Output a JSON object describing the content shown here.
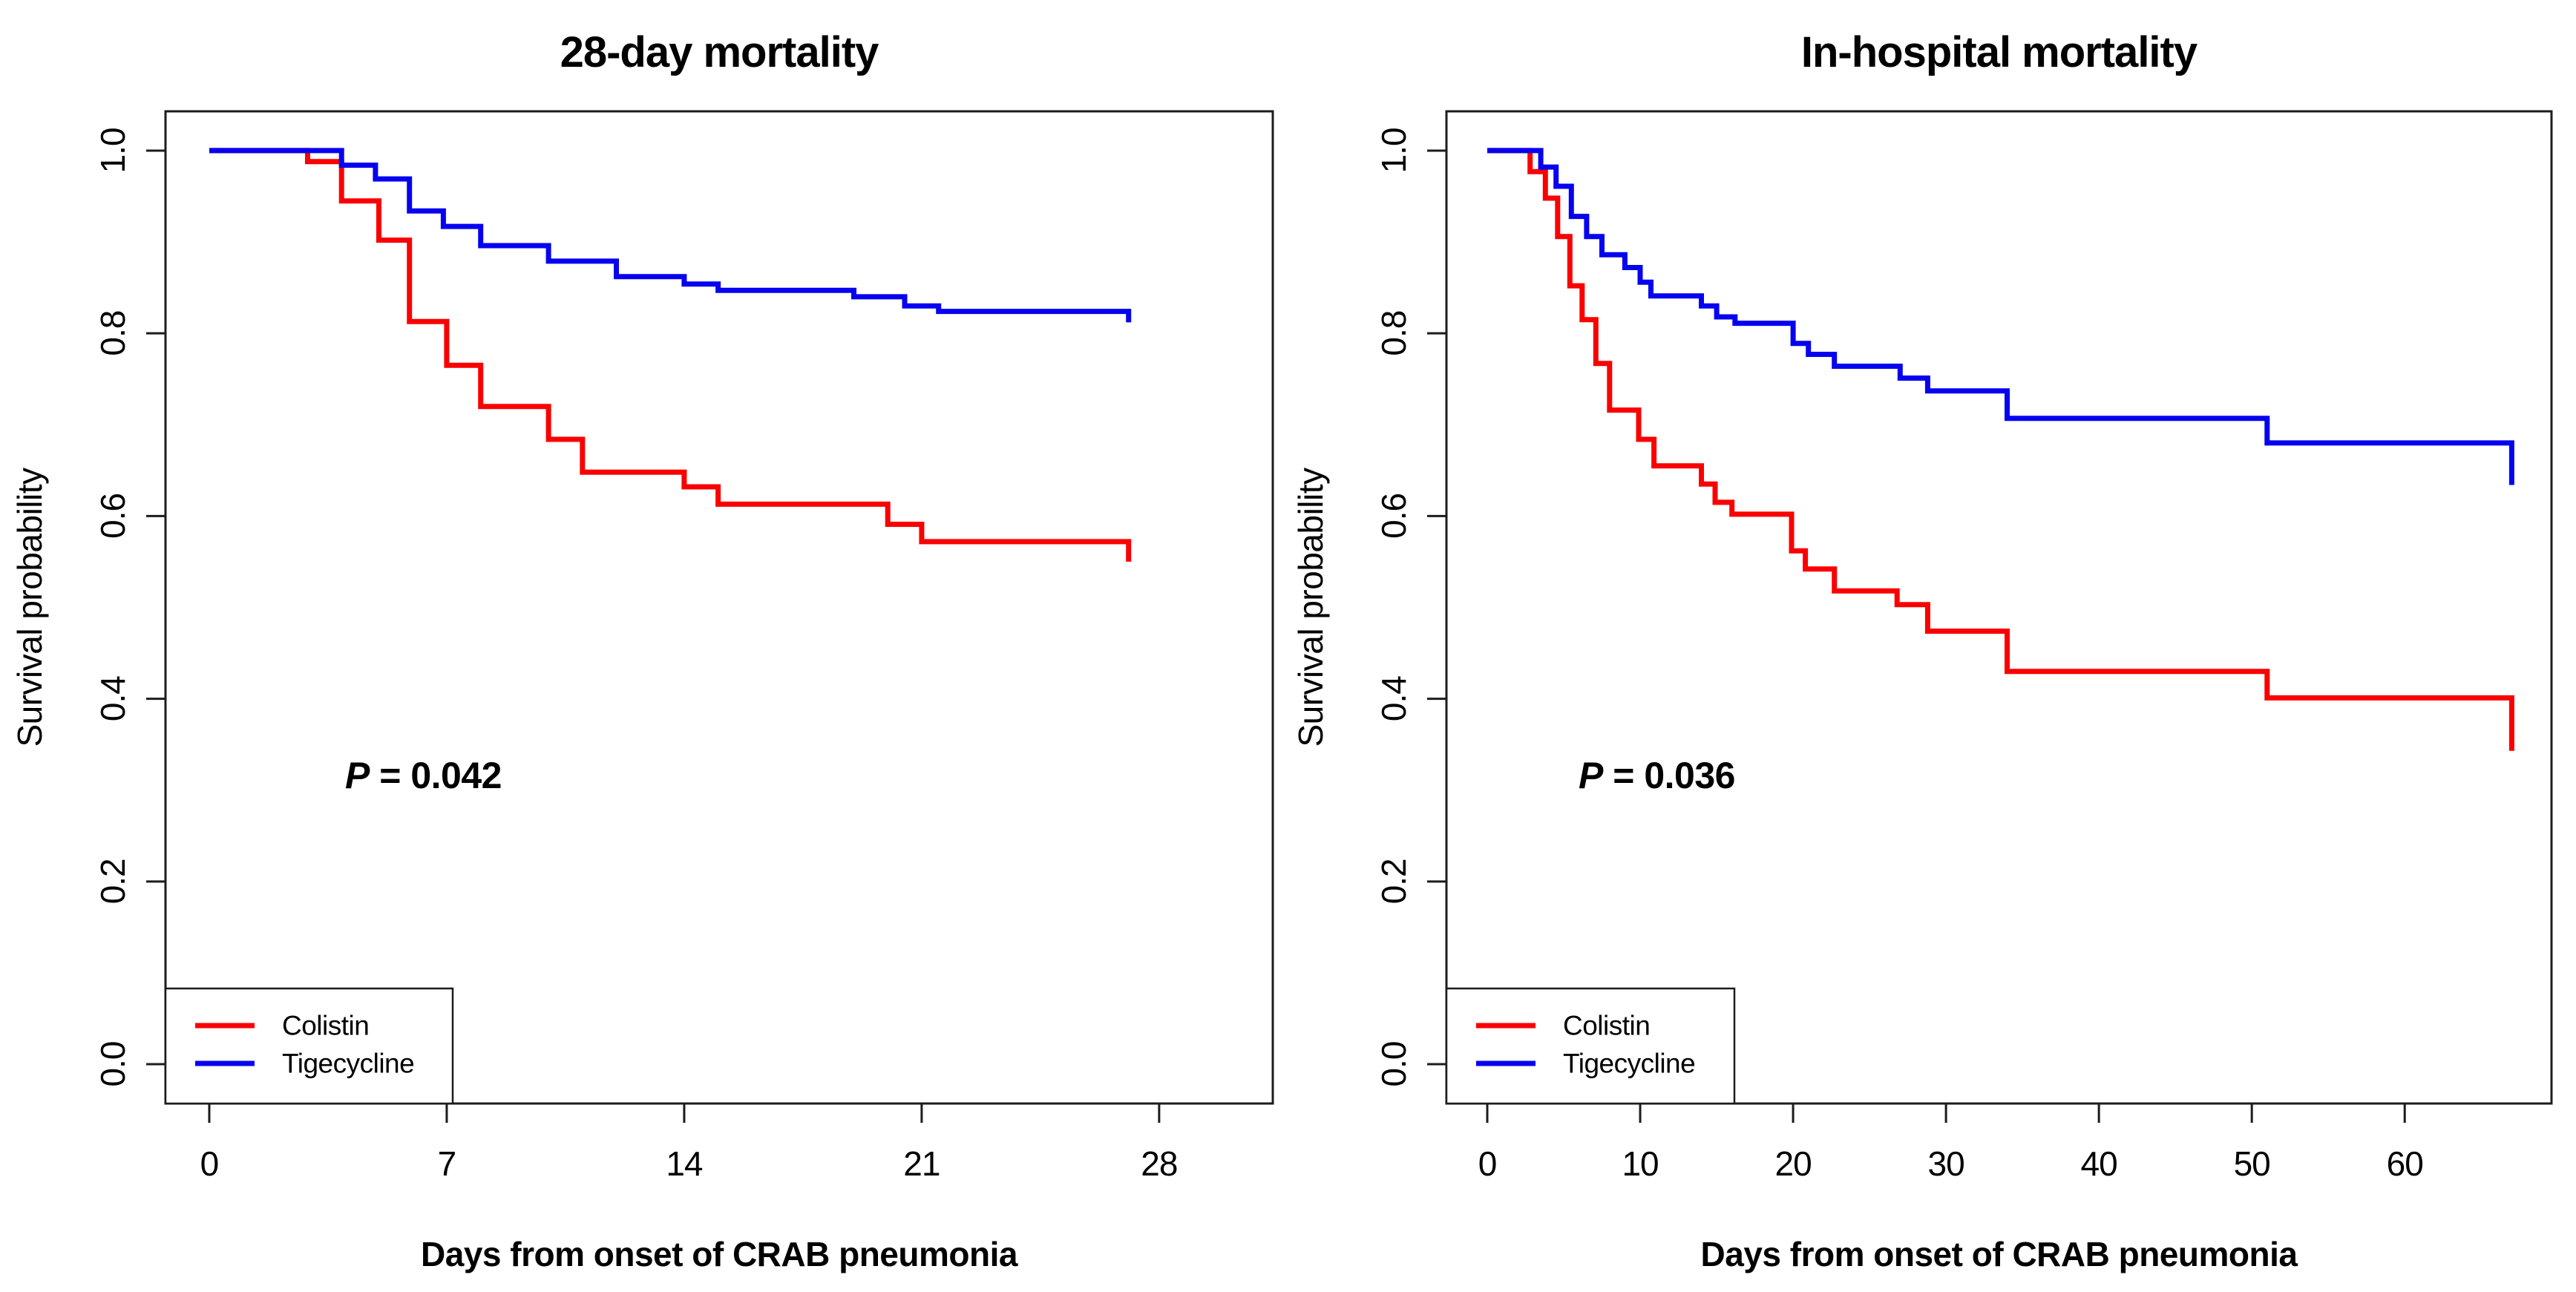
{
  "figure": {
    "background": "#ffffff",
    "axis_color": "#1c1c1c",
    "text_color": "#000000",
    "colistin_color": "#fa0101",
    "tigecycline_color": "#0602f0"
  },
  "chart_data": [
    {
      "type": "line",
      "variant": "kaplan-meier-step",
      "title": "28-day mortality",
      "xlabel": "Days from onset of CRAB pneumonia",
      "ylabel": "Survival probability",
      "p_value": {
        "prefix": "P",
        "rest": " = 0.042"
      },
      "x_ticks": [
        0,
        7,
        14,
        21,
        28
      ],
      "y_ticks": [
        "1.0",
        "0.8",
        "0.6",
        "0.4",
        "0.2",
        "0.0"
      ],
      "xlim": [
        -1.29,
        31.35
      ],
      "ylim": [
        -0.043,
        1.043
      ],
      "grid": false,
      "legend_position": "bottom-left",
      "series": [
        {
          "name": "Colistin",
          "color": "#fa0101",
          "points": [
            [
              0,
              1.0
            ],
            [
              2.9,
              0.988
            ],
            [
              3.9,
              0.945
            ],
            [
              5,
              0.902
            ],
            [
              5.9,
              0.813
            ],
            [
              7,
              0.765
            ],
            [
              8,
              0.72
            ],
            [
              10,
              0.684
            ],
            [
              11,
              0.648
            ],
            [
              14,
              0.632
            ],
            [
              15,
              0.613
            ],
            [
              20,
              0.591
            ],
            [
              21,
              0.572
            ],
            [
              27.1,
              0.55
            ]
          ]
        },
        {
          "name": "Tigecycline",
          "color": "#0602f0",
          "points": [
            [
              0,
              1.0
            ],
            [
              3.9,
              0.984
            ],
            [
              4.9,
              0.969
            ],
            [
              5.9,
              0.934
            ],
            [
              6.9,
              0.917
            ],
            [
              8,
              0.896
            ],
            [
              10,
              0.879
            ],
            [
              12,
              0.862
            ],
            [
              14,
              0.854
            ],
            [
              15,
              0.847
            ],
            [
              19,
              0.84
            ],
            [
              20.5,
              0.83
            ],
            [
              21.5,
              0.824
            ],
            [
              27.1,
              0.812
            ]
          ]
        }
      ]
    },
    {
      "type": "line",
      "variant": "kaplan-meier-step",
      "title": "In-hospital mortality",
      "xlabel": "Days from onset of CRAB pneumonia",
      "ylabel": "Survival probability",
      "p_value": {
        "prefix": "P",
        "rest": " = 0.036"
      },
      "x_ticks": [
        0,
        10,
        20,
        30,
        40,
        50,
        60
      ],
      "y_ticks": [
        "1.0",
        "0.8",
        "0.6",
        "0.4",
        "0.2",
        "0.0"
      ],
      "xlim": [
        -2.67,
        69.6
      ],
      "ylim": [
        -0.043,
        1.043
      ],
      "grid": false,
      "legend_position": "bottom-left",
      "series": [
        {
          "name": "Colistin",
          "color": "#fa0101",
          "points": [
            [
              0,
              1.0
            ],
            [
              2.8,
              0.977
            ],
            [
              3.8,
              0.948
            ],
            [
              4.6,
              0.906
            ],
            [
              5.4,
              0.852
            ],
            [
              6.2,
              0.815
            ],
            [
              7.1,
              0.767
            ],
            [
              8,
              0.716
            ],
            [
              9.9,
              0.684
            ],
            [
              10.9,
              0.655
            ],
            [
              14,
              0.635
            ],
            [
              14.9,
              0.615
            ],
            [
              16,
              0.602
            ],
            [
              19.9,
              0.562
            ],
            [
              20.8,
              0.542
            ],
            [
              22.7,
              0.518
            ],
            [
              26.8,
              0.503
            ],
            [
              28.8,
              0.474
            ],
            [
              34,
              0.43
            ],
            [
              51,
              0.401
            ],
            [
              67,
              0.343
            ]
          ]
        },
        {
          "name": "Tigecycline",
          "color": "#0602f0",
          "points": [
            [
              0,
              1.0
            ],
            [
              3.5,
              0.982
            ],
            [
              4.5,
              0.961
            ],
            [
              5.5,
              0.928
            ],
            [
              6.5,
              0.906
            ],
            [
              7.5,
              0.886
            ],
            [
              9,
              0.872
            ],
            [
              10,
              0.856
            ],
            [
              10.7,
              0.841
            ],
            [
              14,
              0.83
            ],
            [
              15,
              0.818
            ],
            [
              16.2,
              0.811
            ],
            [
              20,
              0.789
            ],
            [
              21,
              0.777
            ],
            [
              22.7,
              0.764
            ],
            [
              27,
              0.751
            ],
            [
              28.8,
              0.737
            ],
            [
              34,
              0.707
            ],
            [
              51,
              0.68
            ],
            [
              67,
              0.634
            ]
          ]
        }
      ]
    }
  ]
}
